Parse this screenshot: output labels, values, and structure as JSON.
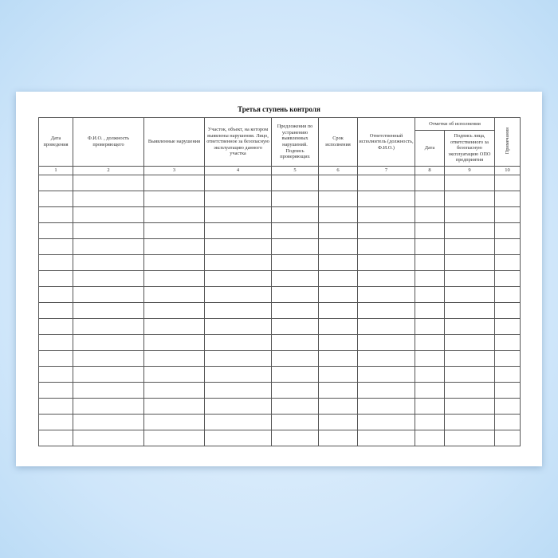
{
  "title": "Третья ступень контроля",
  "columns": [
    "Дата проведения",
    "Ф.И.О. , должность проверяющего",
    "Выявленные нарушения",
    "Участок, объект, на котором выявлены нарушения. Лицо, ответственное за безопасную эксплуатацию данного участка",
    "Предложения по устранению выявленных нарушений. Подпись проверяющих",
    "Срок исполнения",
    "Ответственный исполнитель (должность, Ф.И.О.)"
  ],
  "group_header": "Отметки об исполнении",
  "sub_columns": [
    "Дата",
    "Подпись лица, ответственного за безопасную эксплуатацию ОПО предприятия"
  ],
  "last_column": "Примечания",
  "numbers": [
    "1",
    "2",
    "3",
    "4",
    "5",
    "6",
    "7",
    "8",
    "9",
    "10"
  ],
  "empty_rows": 17
}
